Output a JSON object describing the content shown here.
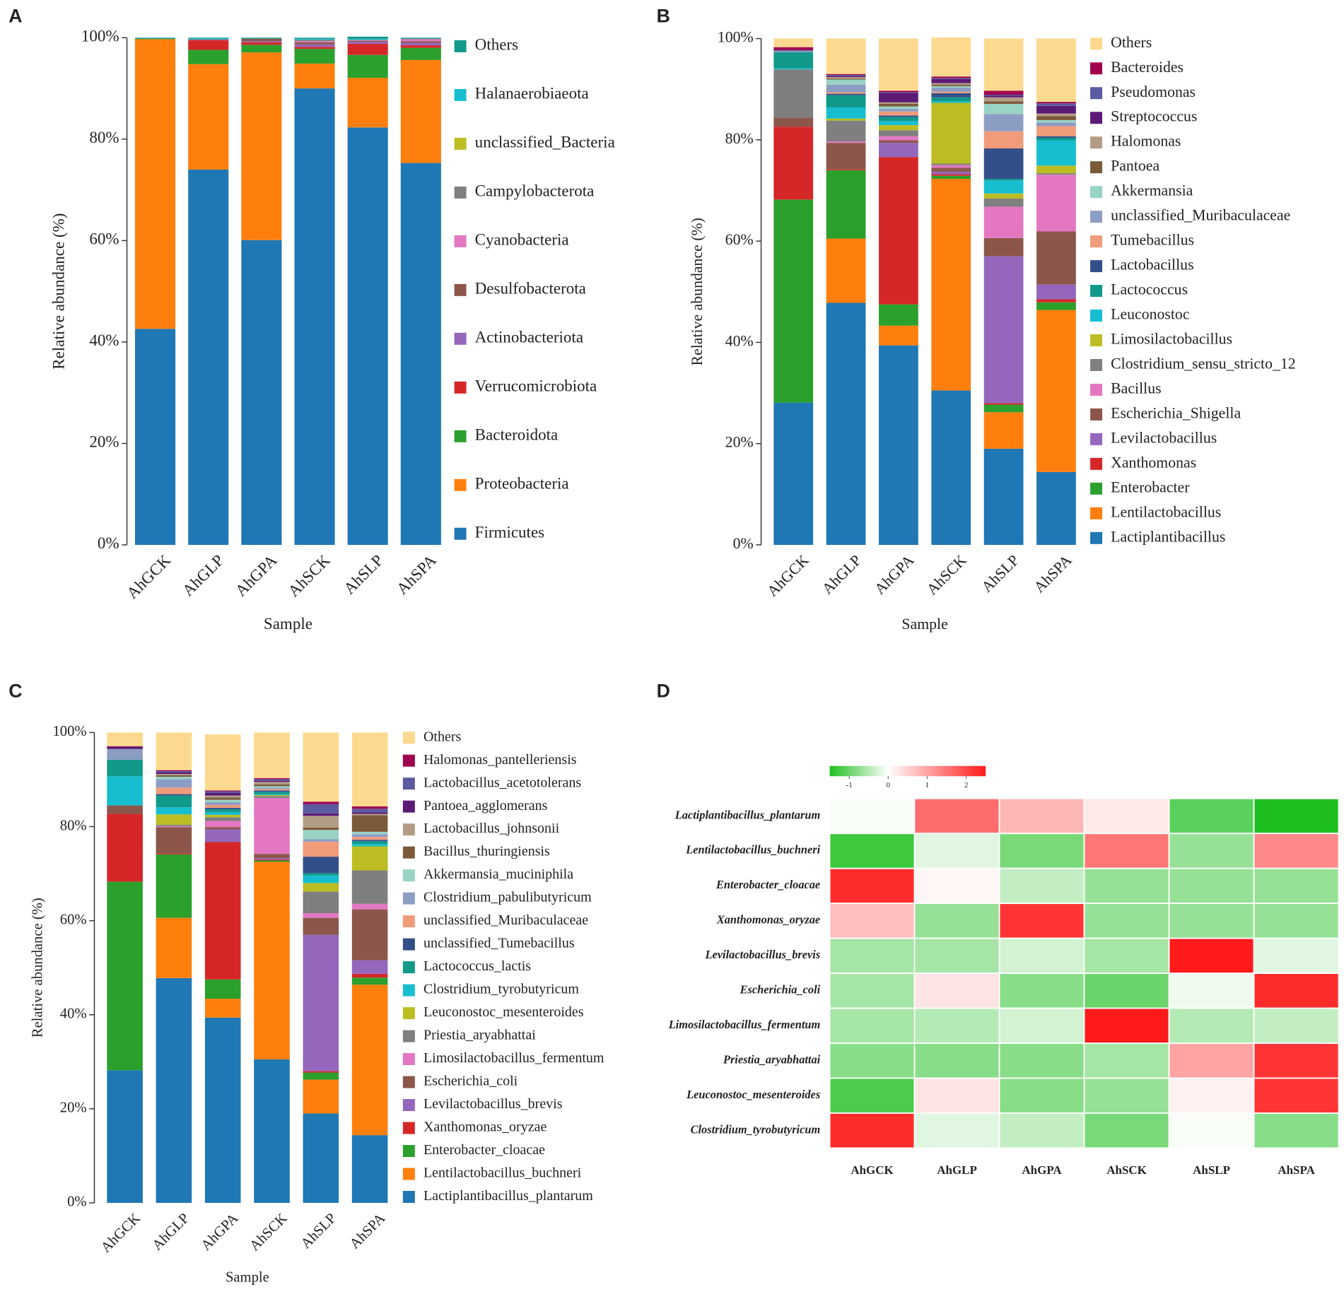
{
  "chart_data": [
    {
      "type": "bar",
      "stacked": true,
      "label": "A",
      "xlabel": "Sample",
      "ylabel": "Relative abundance (%)",
      "categories": [
        "AhGCK",
        "AhGLP",
        "AhGPA",
        "AhSCK",
        "AhSLP",
        "AhSPA"
      ],
      "ylim": [
        0,
        100
      ],
      "yticks": [
        {
          "value": 0,
          "label": "0%"
        },
        {
          "value": 20,
          "label": "20%"
        },
        {
          "value": 40,
          "label": "40%"
        },
        {
          "value": 60,
          "label": "60%"
        },
        {
          "value": 80,
          "label": "80%"
        },
        {
          "value": 100,
          "label": "100%"
        }
      ],
      "series": [
        {
          "name": "Firmicutes",
          "color": "#1f77b4",
          "values": [
            42.6,
            74,
            60.1,
            90,
            82.3,
            75.3
          ]
        },
        {
          "name": "Proteobacteria",
          "color": "#ff7f0e",
          "values": [
            57.1,
            20.8,
            37,
            4.9,
            9.8,
            20.3
          ]
        },
        {
          "name": "Bacteroidota",
          "color": "#2ca02c",
          "values": [
            0.1,
            2.8,
            1.5,
            2.9,
            4.5,
            2.4
          ]
        },
        {
          "name": "Verrucomicrobiota",
          "color": "#d62728",
          "values": [
            0,
            1.9,
            0.5,
            0.4,
            2.2,
            0.5
          ]
        },
        {
          "name": "Actinobacteriota",
          "color": "#9467bd",
          "values": [
            0,
            0.1,
            0.2,
            0.5,
            0.4,
            0.5
          ]
        },
        {
          "name": "Desulfobacterota",
          "color": "#8c564b",
          "values": [
            0,
            0.1,
            0.5,
            0.4,
            0.2,
            0.3
          ]
        },
        {
          "name": "Cyanobacteria",
          "color": "#e377c2",
          "values": [
            0,
            0,
            0,
            0.2,
            0.1,
            0.4
          ]
        },
        {
          "name": "Campylobacterota",
          "color": "#7f7f7f",
          "values": [
            0,
            0,
            0,
            0.3,
            0.1,
            0.1
          ]
        },
        {
          "name": "unclassified_Bacteria",
          "color": "#bcbd22",
          "values": [
            0,
            0,
            0,
            0,
            0,
            0
          ]
        },
        {
          "name": "Halanaerobiaeota",
          "color": "#17becf",
          "values": [
            0,
            0.2,
            0,
            0.2,
            0.2,
            0
          ]
        },
        {
          "name": "Others",
          "color": "#11998a",
          "values": [
            0.2,
            0.1,
            0.2,
            0.2,
            0.4,
            0.2
          ]
        }
      ]
    },
    {
      "type": "bar",
      "stacked": true,
      "label": "B",
      "xlabel": "Sample",
      "ylabel": "Relative abundance (%)",
      "categories": [
        "AhGCK",
        "AhGLP",
        "AhGPA",
        "AhSCK",
        "AhSLP",
        "AhSPA"
      ],
      "ylim": [
        0,
        100
      ],
      "yticks": [
        {
          "value": 0,
          "label": "0%"
        },
        {
          "value": 20,
          "label": "20%"
        },
        {
          "value": 40,
          "label": "40%"
        },
        {
          "value": 60,
          "label": "60%"
        },
        {
          "value": 80,
          "label": "80%"
        },
        {
          "value": 100,
          "label": "100%"
        }
      ],
      "series": [
        {
          "name": "Lactiplantibacillus",
          "color": "#1f77b4",
          "values": [
            28.1,
            47.8,
            39.4,
            30.5,
            19,
            14.4
          ]
        },
        {
          "name": "Lentilactobacillus",
          "color": "#ff7f0e",
          "values": [
            0,
            12.7,
            3.9,
            41.8,
            7.2,
            32
          ]
        },
        {
          "name": "Enterobacter",
          "color": "#2ca02c",
          "values": [
            40.1,
            13.5,
            4.2,
            0.6,
            1.5,
            1.5
          ]
        },
        {
          "name": "Xanthomonas",
          "color": "#d62728",
          "values": [
            14.4,
            0.2,
            29.1,
            0.3,
            0.3,
            0.6
          ]
        },
        {
          "name": "Levilactobacillus",
          "color": "#9467bd",
          "values": [
            0,
            0,
            2.8,
            0.5,
            29,
            2.9
          ]
        },
        {
          "name": "Escherichia_Shigella",
          "color": "#8c564b",
          "values": [
            1.8,
            5.2,
            0.5,
            0.8,
            3.6,
            10.5
          ]
        },
        {
          "name": "Bacillus",
          "color": "#e377c2",
          "values": [
            0,
            0.3,
            0.8,
            0.5,
            6.2,
            11.2
          ]
        },
        {
          "name": "Clostridium_sensu_stricto_12",
          "color": "#7f7f7f",
          "values": [
            9.5,
            4.1,
            1.2,
            0.3,
            1.6,
            0.3
          ]
        },
        {
          "name": "Limosilactobacillus",
          "color": "#bcbd22",
          "values": [
            0,
            0.4,
            1,
            12,
            1,
            1.5
          ]
        },
        {
          "name": "Leuconostoc",
          "color": "#17becf",
          "values": [
            0.2,
            2.2,
            0.8,
            0.3,
            2.6,
            5
          ]
        },
        {
          "name": "Lactococcus",
          "color": "#11998a",
          "values": [
            3.2,
            2.4,
            0.8,
            0.8,
            0.3,
            0.5
          ]
        },
        {
          "name": "Lactobacillus",
          "color": "#334f8a",
          "values": [
            0,
            0.3,
            0.3,
            0.8,
            6,
            0.3
          ]
        },
        {
          "name": "Tumebacillus",
          "color": "#f09b7a",
          "values": [
            0,
            0.3,
            0.8,
            0.3,
            3.4,
            2
          ]
        },
        {
          "name": "unclassified_Muribaculaceae",
          "color": "#8c9dc4",
          "values": [
            0.3,
            1.5,
            0.5,
            0.8,
            3.4,
            0.7
          ]
        },
        {
          "name": "Akkermansia",
          "color": "#99d3c5",
          "values": [
            0,
            1,
            0.5,
            0.3,
            2,
            0.5
          ]
        },
        {
          "name": "Pantoea",
          "color": "#7b5a3a",
          "values": [
            0,
            0.2,
            0.5,
            0.3,
            0.5,
            0.8
          ]
        },
        {
          "name": "Halomonas",
          "color": "#b39c86",
          "values": [
            0,
            0.3,
            0.3,
            0.3,
            0.8,
            0.5
          ]
        },
        {
          "name": "Streptococcus",
          "color": "#5b1a75",
          "values": [
            0.2,
            0.2,
            1.8,
            0.8,
            0.3,
            1.5
          ]
        },
        {
          "name": "Pseudomonas",
          "color": "#5c5aa0",
          "values": [
            0,
            0.2,
            0.2,
            0.2,
            0.2,
            0.5
          ]
        },
        {
          "name": "Bacteroides",
          "color": "#a0004e",
          "values": [
            0.5,
            0.2,
            0.3,
            0.3,
            0.8,
            0.3
          ]
        },
        {
          "name": "Others",
          "color": "#fdd98f",
          "values": [
            1.7,
            7,
            10.3,
            7.7,
            10.3,
            12.5
          ]
        }
      ]
    },
    {
      "type": "bar",
      "stacked": true,
      "label": "C",
      "xlabel": "Sample",
      "ylabel": "Relative abundance (%)",
      "categories": [
        "AhGCK",
        "AhGLP",
        "AhGPA",
        "AhSCK",
        "AhSLP",
        "AhSPA"
      ],
      "ylim": [
        0,
        100
      ],
      "yticks": [
        {
          "value": 0,
          "label": "0%"
        },
        {
          "value": 20,
          "label": "20%"
        },
        {
          "value": 40,
          "label": "40%"
        },
        {
          "value": 60,
          "label": "60%"
        },
        {
          "value": 80,
          "label": "80%"
        },
        {
          "value": 100,
          "label": "100%"
        }
      ],
      "series": [
        {
          "name": "Lactiplantibacillus_plantarum",
          "color": "#1f77b4",
          "values": [
            28.2,
            47.8,
            39.4,
            30.5,
            19,
            14.4
          ]
        },
        {
          "name": "Lentilactobacillus_buchneri",
          "color": "#ff7f0e",
          "values": [
            0,
            12.8,
            4,
            42,
            7.2,
            32
          ]
        },
        {
          "name": "Enterobacter_cloacae",
          "color": "#2ca02c",
          "values": [
            40.1,
            13.5,
            4.1,
            0.3,
            1.5,
            1.5
          ]
        },
        {
          "name": "Xanthomonas_oryzae",
          "color": "#d62728",
          "values": [
            14.4,
            0.2,
            29.2,
            0.2,
            0.3,
            0.8
          ]
        },
        {
          "name": "Levilactobacillus_brevis",
          "color": "#9467bd",
          "values": [
            0,
            0,
            2.7,
            0.3,
            29,
            2.9
          ]
        },
        {
          "name": "Escherichia_coli",
          "color": "#8c564b",
          "values": [
            1.8,
            5.6,
            0.5,
            0.9,
            3.6,
            10.8
          ]
        },
        {
          "name": "Limosilactobacillus_fermentum",
          "color": "#e377c2",
          "values": [
            0,
            0.2,
            1.3,
            11.9,
            1,
            1.2
          ]
        },
        {
          "name": "Priestia_aryabhattai",
          "color": "#7f7f7f",
          "values": [
            0,
            0.3,
            0.8,
            0.4,
            4.6,
            7.1
          ]
        },
        {
          "name": "Leuconostoc_mesenteroides",
          "color": "#bcbd22",
          "values": [
            0,
            2.2,
            0.5,
            0.2,
            1.8,
            5.1
          ]
        },
        {
          "name": "Clostridium_tyrobutyricum",
          "color": "#17becf",
          "values": [
            6.2,
            1.5,
            0.6,
            0.2,
            1.6,
            0.5
          ]
        },
        {
          "name": "Lactococcus_lactis",
          "color": "#11998a",
          "values": [
            3.5,
            2.5,
            0.6,
            0.5,
            0.5,
            0.6
          ]
        },
        {
          "name": "unclassified_Tumebacillus",
          "color": "#334f8a",
          "values": [
            0,
            0.3,
            0.3,
            0.3,
            3.5,
            0.3
          ]
        },
        {
          "name": "unclassified_Muribaculaceae",
          "color": "#f09b7a",
          "values": [
            0,
            1.4,
            0.6,
            0.3,
            3.2,
            0.6
          ]
        },
        {
          "name": "Clostridium_pabulibutyricum",
          "color": "#8c9dc4",
          "values": [
            2.3,
            1.8,
            0.6,
            0.3,
            0.5,
            0.6
          ]
        },
        {
          "name": "Akkermansia_muciniphila",
          "color": "#99d3c5",
          "values": [
            0,
            0.5,
            0.5,
            0.3,
            2,
            0.5
          ]
        },
        {
          "name": "Bacillus_thuringiensis",
          "color": "#7b5a3a",
          "values": [
            0,
            0.3,
            0.5,
            0.4,
            0.5,
            3.5
          ]
        },
        {
          "name": "Lactobacillus_johnsonii",
          "color": "#b39c86",
          "values": [
            0,
            0.3,
            0.4,
            0.5,
            2.5,
            0.3
          ]
        },
        {
          "name": "Pantoea_agglomerans",
          "color": "#5b1a75",
          "values": [
            0.5,
            0.3,
            0.6,
            0.3,
            0.5,
            0.3
          ]
        },
        {
          "name": "Lactobacillus_acetotolerans",
          "color": "#5c5aa0",
          "values": [
            0,
            0.3,
            0.3,
            0.3,
            2,
            0.8
          ]
        },
        {
          "name": "Halomonas_pantelleriensis",
          "color": "#a0004e",
          "values": [
            0.1,
            0.2,
            0.2,
            0.2,
            0.5,
            0.5
          ]
        },
        {
          "name": "Others",
          "color": "#fdd98f",
          "values": [
            2.9,
            8,
            11.9,
            9.7,
            14.7,
            15.7
          ]
        }
      ]
    },
    {
      "type": "heatmap",
      "label": "D",
      "categories": [
        "AhGCK",
        "AhGLP",
        "AhGPA",
        "AhSCK",
        "AhSLP",
        "AhSPA"
      ],
      "rows": [
        "Lactiplantibacillus_plantarum",
        "Lentilactobacillus_buchneri",
        "Enterobacter_cloacae",
        "Xanthomonas_oryzae",
        "Levilactobacillus_brevis",
        "Escherichia_coli",
        "Limosilactobacillus_fermentum",
        "Priestia_aryabhattai",
        "Leuconostoc_mesenteroides",
        "Clostridium_tyrobutyricum"
      ],
      "values": [
        [
          -0.05,
          1.6,
          0.8,
          0.25,
          -1.1,
          -1.5
        ],
        [
          -1.3,
          -0.2,
          -0.9,
          1.5,
          -0.7,
          1.3
        ],
        [
          2.3,
          0.1,
          -0.4,
          -0.7,
          -0.7,
          -0.7
        ],
        [
          0.7,
          -0.7,
          2.2,
          -0.7,
          -0.7,
          -0.7
        ],
        [
          -0.6,
          -0.6,
          -0.3,
          -0.6,
          2.5,
          -0.2
        ],
        [
          -0.6,
          0.3,
          -0.8,
          -1.0,
          -0.1,
          2.3
        ],
        [
          -0.6,
          -0.5,
          -0.3,
          2.5,
          -0.5,
          -0.4
        ],
        [
          -0.8,
          -0.8,
          -0.8,
          -0.6,
          1.0,
          2.2
        ],
        [
          -1.2,
          0.3,
          -0.8,
          -0.7,
          0.15,
          2.2
        ],
        [
          2.3,
          -0.2,
          -0.4,
          -0.9,
          -0.05,
          -0.8
        ]
      ],
      "colormap": [
        {
          "value": -1.5,
          "color": "#1fbf1f"
        },
        {
          "value": 0,
          "color": "#ffffff"
        },
        {
          "value": 2.5,
          "color": "#ff1a1a"
        }
      ],
      "zticks": [
        -1,
        0,
        1,
        2
      ]
    }
  ]
}
